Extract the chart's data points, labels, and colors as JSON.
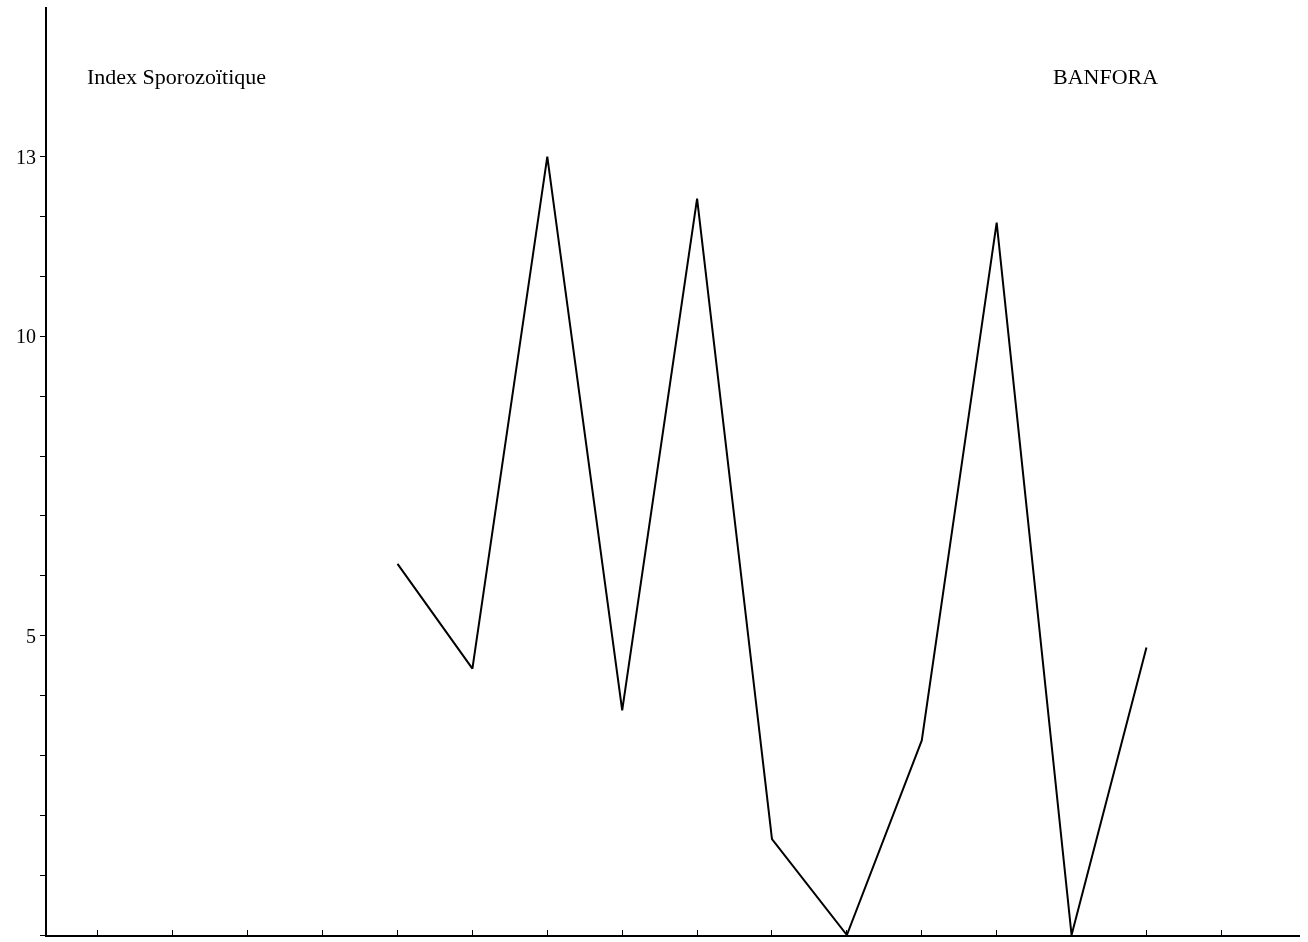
{
  "chart_data": {
    "type": "line",
    "title": "BANFORA",
    "ylabel": "Index Sporozoïtique",
    "categories": [
      null,
      null,
      null,
      null,
      null,
      null,
      null,
      null,
      null,
      null,
      null,
      null,
      null,
      null,
      null,
      null
    ],
    "series": [
      {
        "color": "#000000",
        "values": [
          null,
          null,
          null,
          null,
          6.2,
          4.45,
          13,
          3.75,
          12.3,
          1.6,
          0,
          3.25,
          11.9,
          0,
          4.8,
          null
        ]
      }
    ],
    "ylim": [
      0,
      15.5
    ],
    "yticks": [
      {
        "value": 0,
        "label": null
      },
      {
        "value": 1,
        "label": null
      },
      {
        "value": 2,
        "label": null
      },
      {
        "value": 3,
        "label": null
      },
      {
        "value": 4,
        "label": null
      },
      5,
      {
        "value": 6,
        "label": null
      },
      {
        "value": 7,
        "label": null
      },
      {
        "value": 8,
        "label": null
      },
      {
        "value": 9,
        "label": null
      },
      10,
      {
        "value": 11,
        "label": null
      },
      {
        "value": 12,
        "label": null
      },
      13
    ],
    "line_style": "solid",
    "tick_labels": "y"
  }
}
